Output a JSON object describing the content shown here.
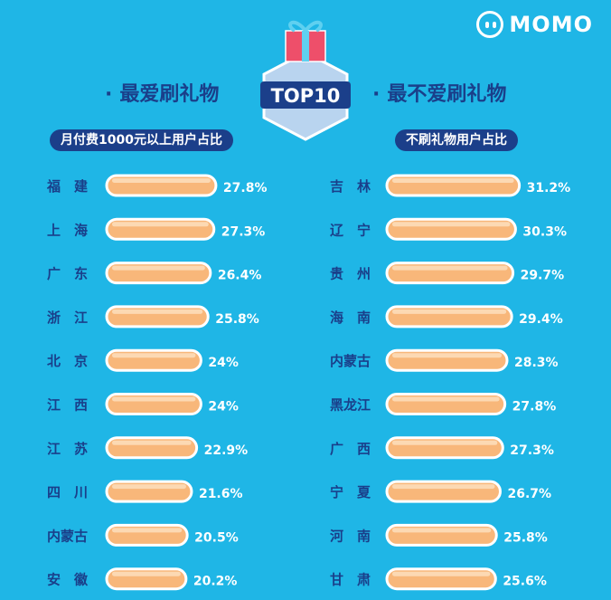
{
  "brand": {
    "name": "MOMO"
  },
  "badge": {
    "text": "TOP10"
  },
  "colors": {
    "background": "#1fb6e6",
    "heading": "#1a3f8a",
    "tag_bg": "#1b3f8a",
    "bar_fill": "#f8b77a",
    "bar_highlight": "#fde1c2",
    "bar_border": "#ffffff",
    "value_text": "#ffffff",
    "label_text": "#1a3f8a"
  },
  "chart_data": [
    {
      "type": "bar",
      "orientation": "horizontal",
      "title": "最爱刷礼物",
      "subtitle": "月付费1000元以上用户占比",
      "categories": [
        "福  建",
        "上  海",
        "广  东",
        "浙  江",
        "北  京",
        "江  西",
        "江  苏",
        "四  川",
        "内蒙古",
        "安  徽"
      ],
      "values": [
        27.8,
        27.3,
        26.4,
        25.8,
        24,
        24,
        22.9,
        21.6,
        20.5,
        20.2
      ],
      "value_labels": [
        "27.8%",
        "27.3%",
        "26.4%",
        "25.8%",
        "24%",
        "24%",
        "22.9%",
        "21.6%",
        "20.5%",
        "20.2%"
      ],
      "unit": "%"
    },
    {
      "type": "bar",
      "orientation": "horizontal",
      "title": "最不爱刷礼物",
      "subtitle": "不刷礼物用户占比",
      "categories": [
        "吉  林",
        "辽  宁",
        "贵  州",
        "海  南",
        "内蒙古",
        "黑龙江",
        "广  西",
        "宁  夏",
        "河  南",
        "甘  肃"
      ],
      "values": [
        31.2,
        30.3,
        29.7,
        29.4,
        28.3,
        27.8,
        27.3,
        26.7,
        25.8,
        25.6
      ],
      "value_labels": [
        "31.2%",
        "30.3%",
        "29.7%",
        "29.4%",
        "28.3%",
        "27.8%",
        "27.3%",
        "26.7%",
        "25.8%",
        "25.6%"
      ],
      "unit": "%"
    }
  ]
}
